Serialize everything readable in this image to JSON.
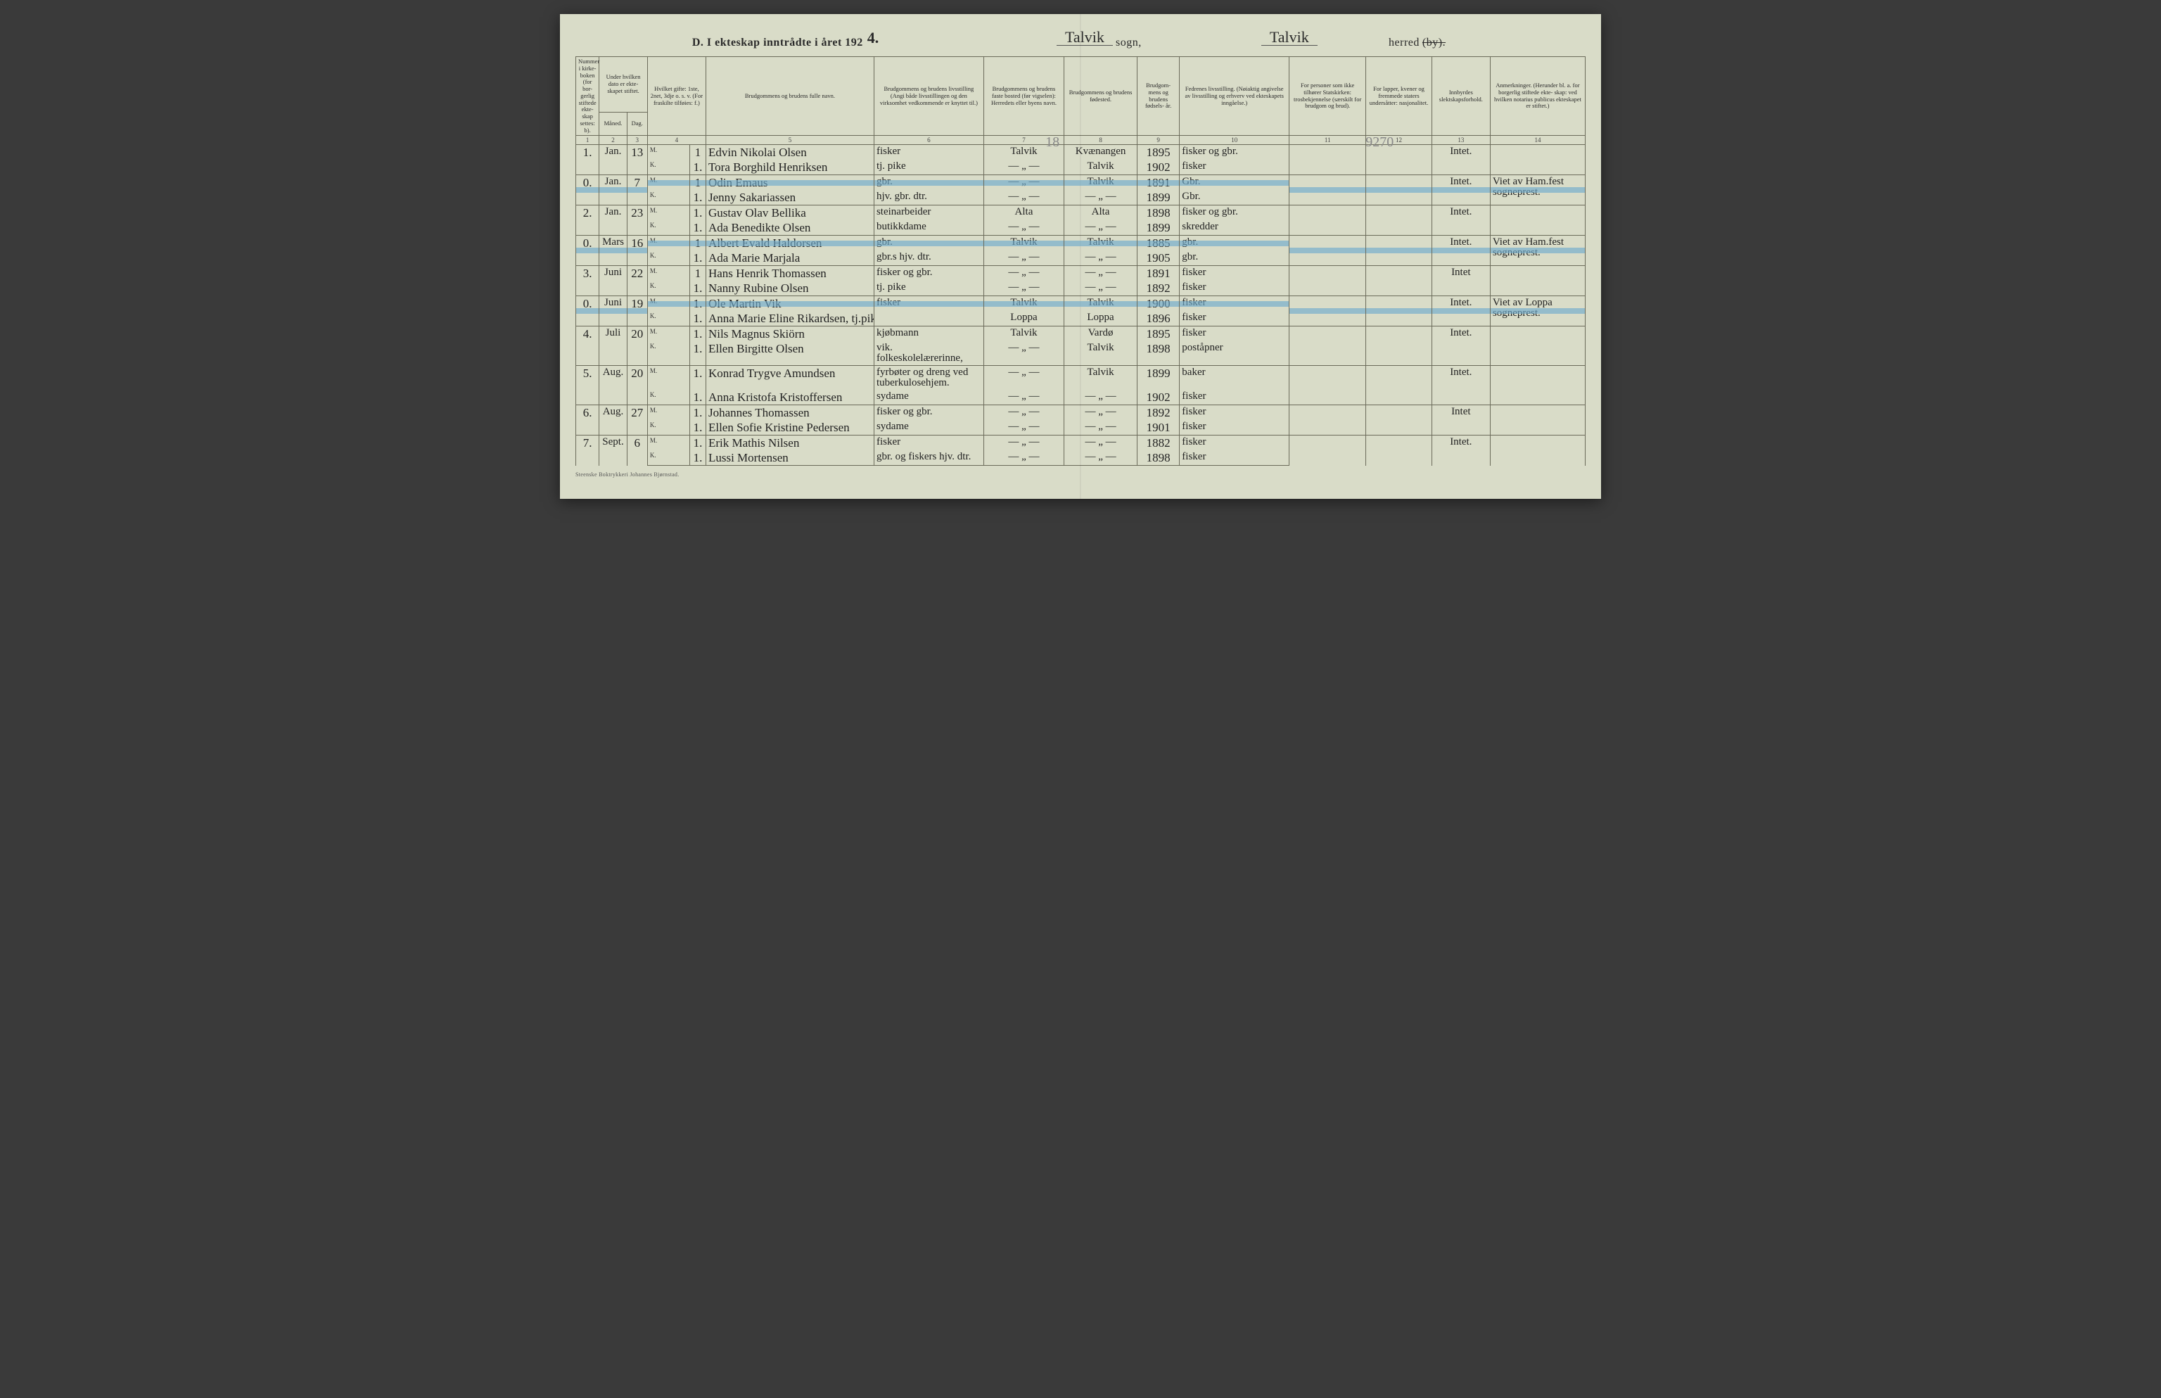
{
  "title": {
    "prefix": "D.  I ekteskap inntrådte i året 192",
    "year_suffix": "4.",
    "sogn_value": "Talvik",
    "sogn_label": "sogn,",
    "herred_value": "Talvik",
    "herred_label": "herred",
    "herred_strike": "(by)."
  },
  "headers": {
    "c1": "Nummer i kirke- boken (for bor- gerlig stiftede ekte- skap settes: b).",
    "c2": "Under hvilken dato er ekte- skapet stiftet.",
    "c2a": "Måned.",
    "c2b": "Dag.",
    "c4": "Hvilket gifte: 1ste, 2net, 3dje o. s. v. (For fraskilte tilføies: f.)",
    "c5": "Brudgommens og brudens fulle navn.",
    "c6": "Brudgommens og brudens livsstilling (Angi både livsstillingen og den virksomhet vedkommende er knyttet til.)",
    "c7": "Brudgommens og brudens faste bosted (før vigselen): Herredets eller byens navn.",
    "c8": "Brudgommens og brudens fødested.",
    "c9": "Brudgom- mens og brudens fødsels- år.",
    "c10": "Fedrenes livsstilling. (Nøiaktig angivelse av livsstilling og erhverv ved ekteskapets inngåelse.)",
    "c11": "For personer som ikke tilhører Statskirken: trosbekjennelse (særskilt for brudgom og brud).",
    "c12": "For lapper, kvener og fremmede staters undersåtter: nasjonalitet.",
    "c13": "Innbyrdes slektskapsforhold.",
    "c14": "Anmerkninger. (Herunder bl. a. for borgerlig stiftede ekte- skap: ved hvilken notarius publicus ekteskapet er stiftet.)"
  },
  "colnums": [
    "1",
    "2",
    "3",
    "4",
    "5",
    "6",
    "7",
    "8",
    "9",
    "10",
    "11",
    "12",
    "13",
    "14"
  ],
  "pencil": {
    "col7": "18",
    "col11_12": "9270"
  },
  "entries": [
    {
      "num": "1.",
      "month": "Jan.",
      "day": "13",
      "g": {
        "mk": "M.",
        "gifte": "1",
        "name": "Edvin Nikolai Olsen",
        "occ": "fisker",
        "res": "Talvik",
        "birthpl": "Kvænangen",
        "year": "1895",
        "father": "fisker og gbr."
      },
      "b": {
        "mk": "K.",
        "gifte": "1.",
        "name": "Tora Borghild Henriksen",
        "occ": "tj. pike",
        "res": "— „ —",
        "birthpl": "Talvik",
        "year": "1902",
        "father": "fisker"
      },
      "c13": "Intet.",
      "c14": ""
    },
    {
      "num": "0.",
      "month": "Jan.",
      "day": "7",
      "g": {
        "mk": "M.",
        "gifte": "1",
        "name": "Odin Emaus",
        "occ": "gbr.",
        "res": "— „ —",
        "birthpl": "Talvik",
        "year": "1891",
        "father": "Gbr."
      },
      "b": {
        "mk": "K.",
        "gifte": "1.",
        "name": "Jenny Sakariassen",
        "occ": "hjv. gbr. dtr.",
        "res": "— „ —",
        "birthpl": "— „ —",
        "year": "1899",
        "father": "Gbr."
      },
      "c13": "Intet.",
      "c14": "Viet av Ham.fest sogneprest.",
      "highlight": "g"
    },
    {
      "num": "2.",
      "month": "Jan.",
      "day": "23",
      "g": {
        "mk": "M.",
        "gifte": "1.",
        "name": "Gustav Olav Bellika",
        "occ": "steinarbeider",
        "res": "Alta",
        "birthpl": "Alta",
        "year": "1898",
        "father": "fisker og gbr."
      },
      "b": {
        "mk": "K.",
        "gifte": "1.",
        "name": "Ada Benedikte Olsen",
        "occ": "butikkdame",
        "res": "— „ —",
        "birthpl": "— „ —",
        "year": "1899",
        "father": "skredder"
      },
      "c13": "Intet.",
      "c14": ""
    },
    {
      "num": "0.",
      "month": "Mars",
      "day": "16",
      "g": {
        "mk": "M.",
        "gifte": "1",
        "name": "Albert Evald Haldorsen",
        "occ": "gbr.",
        "res": "Talvik",
        "birthpl": "Talvik",
        "year": "1885",
        "father": "gbr."
      },
      "b": {
        "mk": "K.",
        "gifte": "1.",
        "name": "Ada Marie Marjala",
        "occ": "gbr.s hjv. dtr.",
        "res": "— „ —",
        "birthpl": "— „ —",
        "year": "1905",
        "father": "gbr."
      },
      "c13": "Intet.",
      "c14": "Viet av Ham.fest sogneprest.",
      "highlight": "g"
    },
    {
      "num": "3.",
      "month": "Juni",
      "day": "22",
      "g": {
        "mk": "M.",
        "gifte": "1",
        "name": "Hans Henrik Thomassen",
        "occ": "fisker og gbr.",
        "res": "— „ —",
        "birthpl": "— „ —",
        "year": "1891",
        "father": "fisker"
      },
      "b": {
        "mk": "K.",
        "gifte": "1.",
        "name": "Nanny Rubine Olsen",
        "occ": "tj. pike",
        "res": "— „ —",
        "birthpl": "— „ —",
        "year": "1892",
        "father": "fisker"
      },
      "c13": "Intet",
      "c14": ""
    },
    {
      "num": "0.",
      "month": "Juni",
      "day": "19",
      "g": {
        "mk": "M.",
        "gifte": "1.",
        "name": "Ole Martin Vik",
        "occ": "fisker",
        "res": "Talvik",
        "birthpl": "Talvik",
        "year": "1900",
        "father": "fisker"
      },
      "b": {
        "mk": "K.",
        "gifte": "1.",
        "name": "Anna Marie Eline Rikardsen, tj.pike",
        "occ": "",
        "res": "Loppa",
        "birthpl": "Loppa",
        "year": "1896",
        "father": "fisker"
      },
      "c13": "Intet.",
      "c14": "Viet av Loppa sogneprest.",
      "highlight": "g"
    },
    {
      "num": "4.",
      "month": "Juli",
      "day": "20",
      "g": {
        "mk": "M.",
        "gifte": "1.",
        "name": "Nils Magnus Skiörn",
        "occ": "kjøbmann",
        "res": "Talvik",
        "birthpl": "Vardø",
        "year": "1895",
        "father": "fisker"
      },
      "b": {
        "mk": "K.",
        "gifte": "1.",
        "name": "Ellen Birgitte Olsen",
        "occ": "vik. folkeskolelærerinne,",
        "res": "— „ —",
        "birthpl": "Talvik",
        "year": "1898",
        "father": "poståpner"
      },
      "c13": "Intet.",
      "c14": ""
    },
    {
      "num": "5.",
      "month": "Aug.",
      "day": "20",
      "g": {
        "mk": "M.",
        "gifte": "1.",
        "name": "Konrad Trygve Amundsen",
        "occ": "fyrbøter og dreng ved tuberkulosehjem.",
        "res": "— „ —",
        "birthpl": "Talvik",
        "year": "1899",
        "father": "baker"
      },
      "b": {
        "mk": "K.",
        "gifte": "1.",
        "name": "Anna Kristofa Kristoffersen",
        "occ": "sydame",
        "res": "— „ —",
        "birthpl": "— „ —",
        "year": "1902",
        "father": "fisker"
      },
      "c13": "Intet.",
      "c14": ""
    },
    {
      "num": "6.",
      "month": "Aug.",
      "day": "27",
      "g": {
        "mk": "M.",
        "gifte": "1.",
        "name": "Johannes Thomassen",
        "occ": "fisker og gbr.",
        "res": "— „ —",
        "birthpl": "— „ —",
        "year": "1892",
        "father": "fisker"
      },
      "b": {
        "mk": "K.",
        "gifte": "1.",
        "name": "Ellen Sofie Kristine Pedersen",
        "occ": "sydame",
        "res": "— „ —",
        "birthpl": "— „ —",
        "year": "1901",
        "father": "fisker"
      },
      "c13": "Intet",
      "c14": ""
    },
    {
      "num": "7.",
      "month": "Sept.",
      "day": "6",
      "g": {
        "mk": "M.",
        "gifte": "1.",
        "name": "Erik Mathis Nilsen",
        "occ": "fisker",
        "res": "— „ —",
        "birthpl": "— „ —",
        "year": "1882",
        "father": "fisker"
      },
      "b": {
        "mk": "K.",
        "gifte": "1.",
        "name": "Lussi Mortensen",
        "occ": "gbr. og fiskers hjv. dtr.",
        "res": "— „ —",
        "birthpl": "— „ —",
        "year": "1898",
        "father": "fisker"
      },
      "c13": "Intet.",
      "c14": ""
    }
  ],
  "footer": "Steenske Boktrykkeri Johannes Bjørnstad."
}
